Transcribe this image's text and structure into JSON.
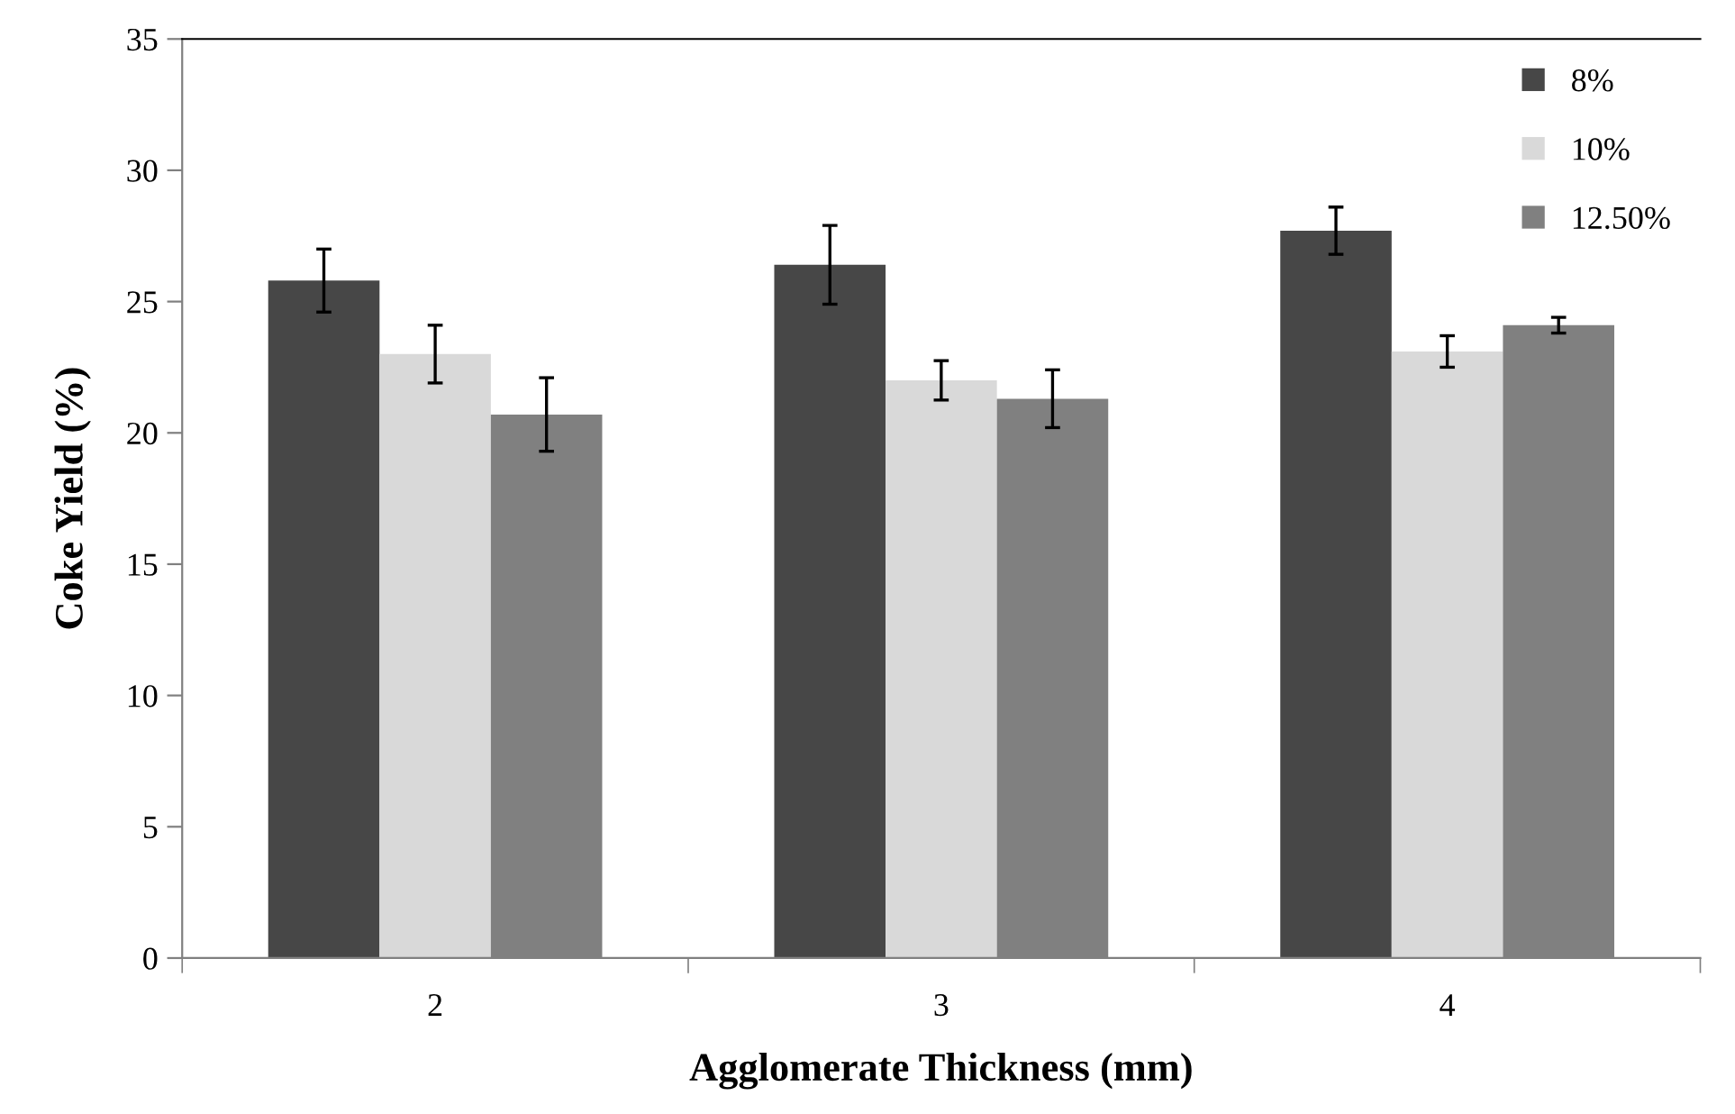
{
  "chart_data": {
    "type": "bar",
    "xlabel": "Agglomerate Thickness (mm)",
    "ylabel": "Coke Yield (%)",
    "categories": [
      "2",
      "3",
      "4"
    ],
    "series": [
      {
        "name": "8%",
        "color": "#474747",
        "values": [
          25.8,
          26.4,
          27.7
        ],
        "errors": [
          1.2,
          1.5,
          0.9
        ]
      },
      {
        "name": "10%",
        "color": "#d9d9d9",
        "values": [
          23.0,
          22.0,
          23.1
        ],
        "errors": [
          1.1,
          0.75,
          0.6
        ]
      },
      {
        "name": "12.50%",
        "color": "#808080",
        "values": [
          20.7,
          21.3,
          24.1
        ],
        "errors": [
          1.4,
          1.1,
          0.3
        ]
      }
    ],
    "ylim": [
      0,
      35
    ],
    "yticks": [
      0,
      5,
      10,
      15,
      20,
      25,
      30,
      35
    ],
    "grid": false,
    "legend": "top right"
  }
}
